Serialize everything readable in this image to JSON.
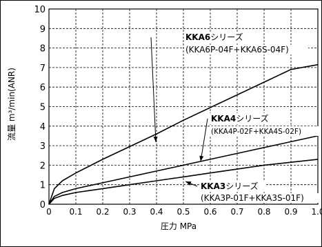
{
  "chart_data": {
    "type": "line",
    "xlabel": "圧力 MPa",
    "ylabel": "流量 m³/min(ANR)",
    "xlim": [
      0,
      1.0
    ],
    "ylim": [
      0,
      10
    ],
    "x_ticks": [
      "0",
      "0.1",
      "0.2",
      "0.3",
      "0.4",
      "0.5",
      "0.6",
      "0.7",
      "0.8",
      "0.9",
      "1.0"
    ],
    "y_ticks": [
      "0",
      "1",
      "2",
      "3",
      "4",
      "5",
      "6",
      "7",
      "8",
      "9",
      "10"
    ],
    "grid": true,
    "series": [
      {
        "name": "KKA6シリーズ",
        "label_bold": "KKA6",
        "label_rest": "シリーズ",
        "model": "(KKA6P-04F+KKA6S-04F)",
        "x": [
          0,
          0.02,
          0.05,
          0.1,
          0.2,
          0.3,
          0.4,
          0.5,
          0.6,
          0.7,
          0.8,
          0.9,
          1.0
        ],
        "y": [
          0,
          0.8,
          1.2,
          1.6,
          2.3,
          2.95,
          3.6,
          4.3,
          4.95,
          5.6,
          6.25,
          6.9,
          7.15
        ]
      },
      {
        "name": "KKA4シリーズ",
        "label_bold": "KKA4",
        "label_rest": "シリーズ",
        "model": "(KKA4P-02F+KKA4S-02F)",
        "x": [
          0,
          0.02,
          0.05,
          0.1,
          0.2,
          0.3,
          0.4,
          0.5,
          0.6,
          0.7,
          0.8,
          0.9,
          1.0
        ],
        "y": [
          0,
          0.4,
          0.6,
          0.8,
          1.1,
          1.4,
          1.7,
          2.0,
          2.3,
          2.6,
          2.9,
          3.2,
          3.5
        ]
      },
      {
        "name": "KKA3シリーズ",
        "label_bold": "KKA3",
        "label_rest": "シリーズ",
        "model": "(KKA3P-01F+KKA3S-01F)",
        "x": [
          0,
          0.02,
          0.05,
          0.1,
          0.2,
          0.3,
          0.4,
          0.5,
          0.6,
          0.7,
          0.8,
          0.9,
          1.0
        ],
        "y": [
          0,
          0.3,
          0.45,
          0.6,
          0.8,
          1.0,
          1.2,
          1.4,
          1.6,
          1.8,
          2.0,
          2.15,
          2.3
        ]
      }
    ]
  }
}
